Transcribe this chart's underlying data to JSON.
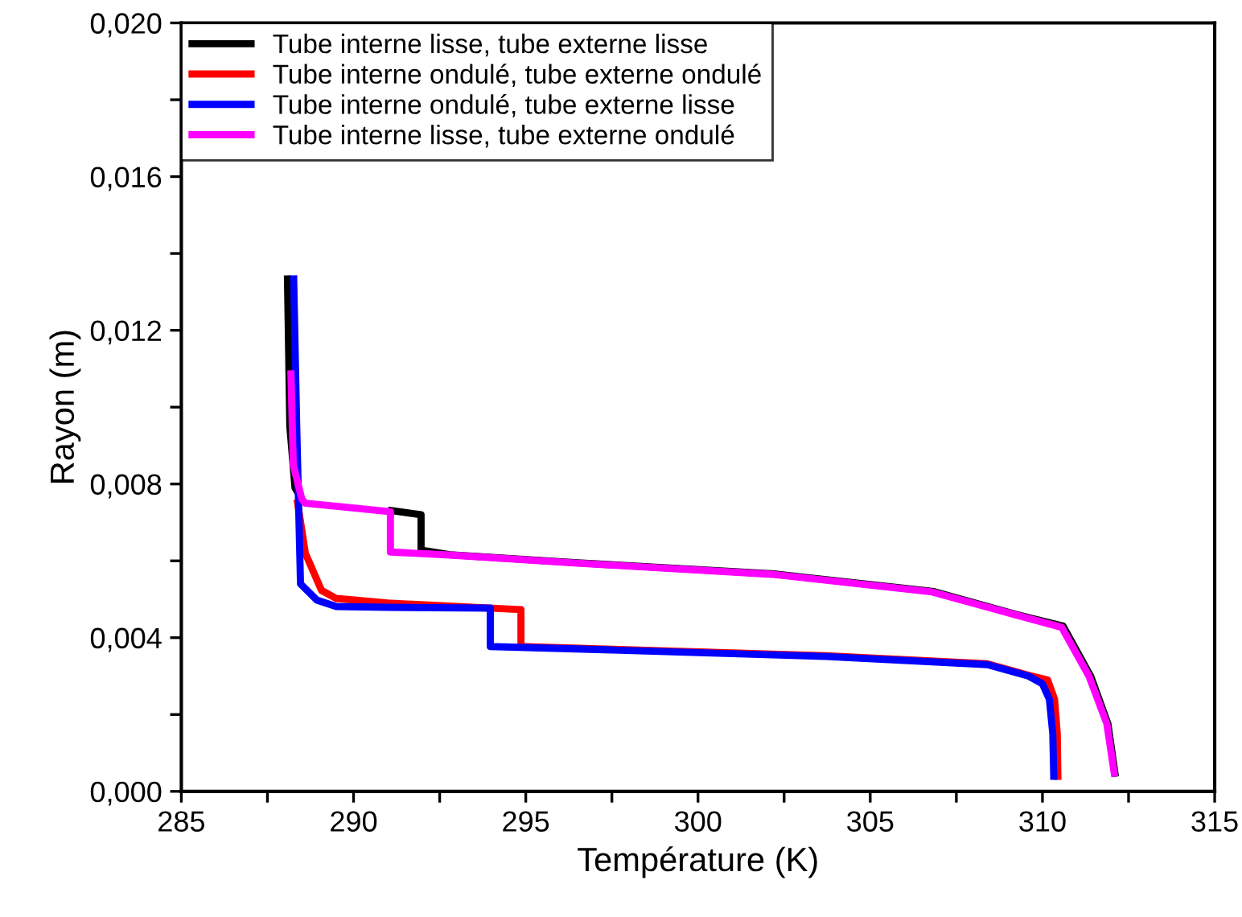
{
  "chart_data": {
    "type": "line",
    "xlabel": "Température (K)",
    "ylabel": "Rayon (m)",
    "xlim": [
      285,
      315
    ],
    "ylim": [
      0,
      0.02
    ],
    "xticks": [
      285,
      {
        "value": 287.5,
        "label": null
      },
      290,
      {
        "value": 292.5,
        "label": null
      },
      295,
      {
        "value": 297.5,
        "label": null
      },
      300,
      {
        "value": 302.5,
        "label": null
      },
      305,
      {
        "value": 307.5,
        "label": null
      },
      310,
      {
        "value": 312.5,
        "label": null
      },
      315
    ],
    "yticks": [
      {
        "value": 0,
        "label": "0,000"
      },
      {
        "value": 0.002,
        "label": null
      },
      {
        "value": 0.004,
        "label": "0,004"
      },
      {
        "value": 0.006,
        "label": null
      },
      {
        "value": 0.008,
        "label": "0,008"
      },
      {
        "value": 0.01,
        "label": null
      },
      {
        "value": 0.012,
        "label": "0,012"
      },
      {
        "value": 0.014,
        "label": null
      },
      {
        "value": 0.016,
        "label": "0,016"
      },
      {
        "value": 0.018,
        "label": null
      },
      {
        "value": 0.02,
        "label": "0,020"
      }
    ],
    "grid": false,
    "legend": "top left",
    "marker": "none",
    "line_style": "solid",
    "series": [
      {
        "name": "Tube interne lisse, tube externe lisse",
        "color": "#000000",
        "x": [
          288.08,
          288.15,
          288.3,
          288.5,
          288.6,
          289.5,
          291.0,
          291.96,
          291.96,
          292.8,
          296.5,
          302.2,
          306.85,
          309.25,
          310.6,
          311.4,
          311.9,
          312.12
        ],
        "values": [
          0.01343,
          0.0095,
          0.0079,
          0.0076,
          null,
          null,
          0.00732,
          0.0072,
          0.00628,
          0.00616,
          0.00595,
          0.00566,
          0.0052,
          0.0046,
          0.0043,
          0.003,
          0.00176,
          0.00038
        ]
      },
      {
        "name": "Tube interne ondulé, tube externe ondulé",
        "color": "#ff0000",
        "x": [
          288.36,
          288.6,
          289.07,
          289.5,
          291.0,
          294.86,
          294.86,
          297.5,
          303.7,
          308.4,
          309.6,
          310.15,
          310.35,
          310.43,
          310.45
        ],
        "values": [
          0.0076,
          0.0062,
          0.00523,
          0.00502,
          0.0049,
          0.00473,
          0.00377,
          0.0037,
          0.00353,
          0.00332,
          0.00302,
          0.0029,
          0.0024,
          0.0015,
          0.0003
        ]
      },
      {
        "name": "Tube interne ondulé, tube externe lisse",
        "color": "#0000ff",
        "x": [
          288.26,
          288.35,
          288.46,
          288.93,
          289.5,
          291.0,
          293.97,
          293.97,
          297.5,
          303.7,
          308.4,
          309.6,
          310.0,
          310.2,
          310.3,
          310.33
        ],
        "values": [
          0.01343,
          0.0095,
          0.0054,
          0.00498,
          0.00481,
          0.00479,
          0.00477,
          0.00377,
          0.00368,
          0.00351,
          0.0033,
          0.003,
          0.0028,
          0.0024,
          0.0015,
          0.0003
        ]
      },
      {
        "name": "Tube interne lisse, tube externe ondulé",
        "color": "#ff00ff",
        "x": [
          288.18,
          288.25,
          288.5,
          288.6,
          289.5,
          291.07,
          291.07,
          292.8,
          296.5,
          302.15,
          306.8,
          309.2,
          310.56,
          311.35,
          311.87,
          312.1
        ],
        "values": [
          0.01096,
          0.0085,
          0.0076,
          0.0075,
          0.00742,
          0.00728,
          0.00623,
          0.00615,
          0.00594,
          0.00565,
          0.00519,
          0.0046,
          0.00427,
          0.003,
          0.00176,
          0.00038
        ]
      }
    ]
  }
}
